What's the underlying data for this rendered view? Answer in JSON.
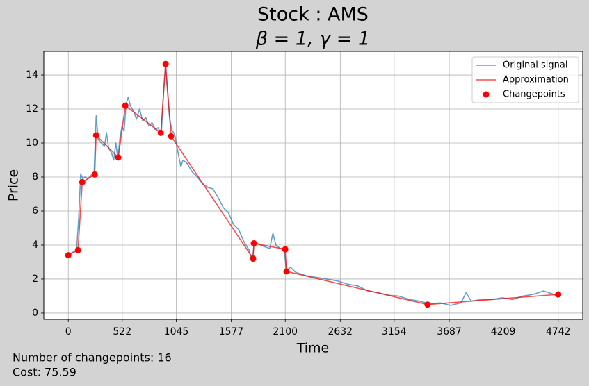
{
  "chart_data": {
    "type": "line",
    "title": "Stock : AMS",
    "subtitle": "β = 1, γ = 1",
    "xlabel": "Time",
    "ylabel": "Price",
    "footnotes": [
      "Number of changepoints: 16",
      "Cost: 75.59"
    ],
    "xlim": [
      -237.1,
      4979.1
    ],
    "ylim": [
      -0.37,
      15.39
    ],
    "xticks": [
      0,
      522,
      1045,
      1577,
      2100,
      2632,
      3154,
      3687,
      4209,
      4742
    ],
    "yticks": [
      0,
      2,
      4,
      6,
      8,
      10,
      12,
      14
    ],
    "grid": true,
    "legend": "upper right",
    "series": [
      {
        "name": "Original signal",
        "color": "#1f77b4",
        "style": "line",
        "x": [
          0,
          20,
          50,
          80,
          100,
          120,
          140,
          160,
          190,
          220,
          250,
          270,
          290,
          320,
          350,
          370,
          390,
          420,
          440,
          460,
          480,
          500,
          520,
          540,
          560,
          580,
          600,
          630,
          660,
          690,
          720,
          750,
          780,
          810,
          840,
          870,
          900,
          920,
          940,
          960,
          980,
          1000,
          1030,
          1060,
          1090,
          1110,
          1150,
          1200,
          1250,
          1300,
          1350,
          1400,
          1450,
          1500,
          1550,
          1600,
          1650,
          1700,
          1750,
          1780,
          1800,
          1830,
          1860,
          1900,
          1950,
          1980,
          2010,
          2050,
          2090,
          2110,
          2150,
          2200,
          2300,
          2400,
          2500,
          2600,
          2700,
          2800,
          2900,
          3000,
          3100,
          3200,
          3300,
          3400,
          3500,
          3600,
          3700,
          3800,
          3850,
          3900,
          4000,
          4100,
          4200,
          4300,
          4400,
          4500,
          4600,
          4700,
          4742
        ],
        "values": [
          3.4,
          3.5,
          3.6,
          3.7,
          5.5,
          8.2,
          7.9,
          8.0,
          7.9,
          8.1,
          8.3,
          11.6,
          10.2,
          10.0,
          9.8,
          10.6,
          9.7,
          9.4,
          9.0,
          10.0,
          9.1,
          10.3,
          11.0,
          10.7,
          12.3,
          12.7,
          12.2,
          11.9,
          11.4,
          12.0,
          11.3,
          11.5,
          11.0,
          11.2,
          10.8,
          10.9,
          10.5,
          12.8,
          14.6,
          13.0,
          11.5,
          10.8,
          10.5,
          9.5,
          8.6,
          9.0,
          8.8,
          8.3,
          8.0,
          7.6,
          7.4,
          7.3,
          6.8,
          6.2,
          5.9,
          5.2,
          4.9,
          4.2,
          3.7,
          3.0,
          4.2,
          4.1,
          4.0,
          3.9,
          3.8,
          4.7,
          4.0,
          3.8,
          3.7,
          2.5,
          2.7,
          2.4,
          2.2,
          2.1,
          2.0,
          1.9,
          1.7,
          1.6,
          1.3,
          1.2,
          1.05,
          1.0,
          0.8,
          0.7,
          0.55,
          0.6,
          0.45,
          0.6,
          1.2,
          0.7,
          0.8,
          0.8,
          0.9,
          0.8,
          1.0,
          1.1,
          1.3,
          1.1,
          0.9
        ]
      },
      {
        "name": "Approximation",
        "color": "red",
        "style": "line",
        "x": [
          0,
          94,
          135,
          256,
          269,
          484,
          552,
          895,
          942,
          995,
          1789,
          1796,
          2099,
          2112,
          3477,
          4742
        ],
        "values": [
          3.4,
          3.7,
          7.7,
          8.15,
          10.45,
          9.15,
          12.2,
          10.6,
          14.65,
          10.4,
          3.2,
          4.1,
          3.75,
          2.45,
          0.5,
          1.1
        ]
      },
      {
        "name": "Changepoints",
        "color": "red",
        "style": "markers",
        "x": [
          0,
          94,
          135,
          256,
          269,
          484,
          552,
          895,
          942,
          995,
          1789,
          1796,
          2099,
          2112,
          3477,
          4742
        ],
        "values": [
          3.4,
          3.7,
          7.7,
          8.15,
          10.45,
          9.15,
          12.2,
          10.6,
          14.65,
          10.4,
          3.2,
          4.1,
          3.75,
          2.45,
          0.5,
          1.1
        ]
      }
    ]
  }
}
